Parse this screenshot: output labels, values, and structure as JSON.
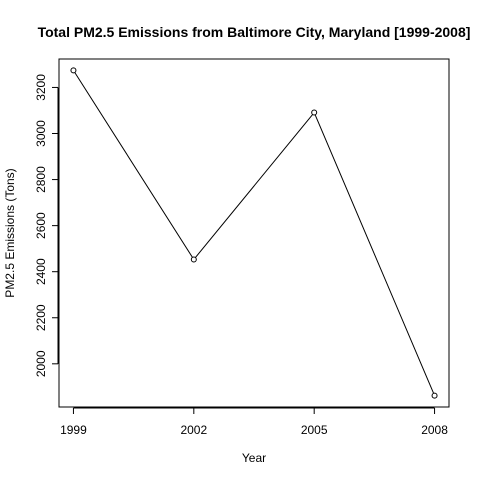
{
  "chart_data": {
    "type": "line",
    "title": "Total PM2.5 Emissions from Baltimore City, Maryland [1999-2008]",
    "xlabel": "Year",
    "ylabel": "PM2.5 Emissions (Tons)",
    "x": [
      1999,
      2002,
      2005,
      2008
    ],
    "series": [
      {
        "values": [
          3274,
          2453,
          3091,
          1862
        ]
      }
    ],
    "xticks": [
      1999,
      2002,
      2005,
      2008
    ],
    "yticks": [
      2000,
      2200,
      2400,
      2600,
      2800,
      3000,
      3200
    ],
    "xlim": [
      1998.64,
      2008.36
    ],
    "ylim": [
      1812.5,
      3323.5
    ],
    "grid": false,
    "legend": "none",
    "line_color": "#000000",
    "marker": "open-circle"
  }
}
